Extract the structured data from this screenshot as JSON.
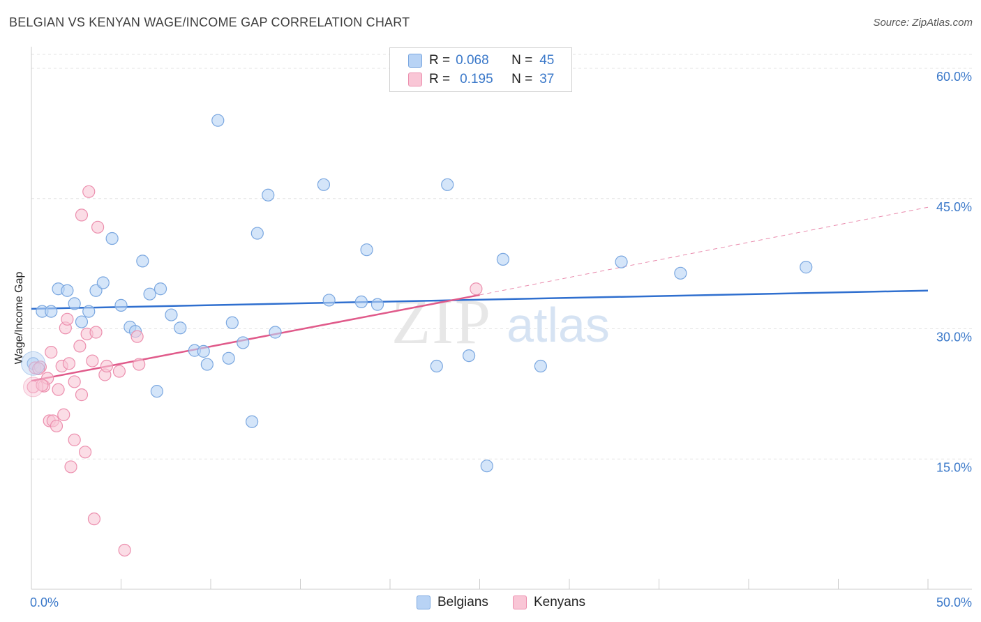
{
  "title": "BELGIAN VS KENYAN WAGE/INCOME GAP CORRELATION CHART",
  "source": "Source: ZipAtlas.com",
  "watermark": {
    "zip": "ZIP",
    "atlas": "atlas"
  },
  "legend": {
    "r_label": "R =",
    "n_label": "N =",
    "rows": [
      {
        "name": "Belgians",
        "r": "0.068",
        "n": "45",
        "fill": "#b8d3f5",
        "stroke": "#7aa7e0"
      },
      {
        "name": "Kenyans",
        "r": "0.195",
        "n": "37",
        "fill": "#f9c6d6",
        "stroke": "#ec8fae"
      }
    ]
  },
  "chart_data": {
    "type": "scatter",
    "title": "BELGIAN VS KENYAN WAGE/INCOME GAP CORRELATION CHART",
    "xlabel": "",
    "ylabel": "Wage/Income Gap",
    "xlim": [
      0,
      50
    ],
    "ylim": [
      0,
      60
    ],
    "x_tick_labels": [
      "0.0%",
      "50.0%"
    ],
    "y_tick_labels": [
      "15.0%",
      "30.0%",
      "45.0%",
      "60.0%"
    ],
    "y_ticks": [
      15,
      30,
      45,
      60
    ],
    "grid": true,
    "series": [
      {
        "name": "Belgians",
        "color": "#2f6fcf",
        "fill": "#b8d3f5",
        "stroke": "#7aa7e0",
        "r": 0.068,
        "n": 45,
        "trend": {
          "x": [
            0,
            50
          ],
          "y": [
            32.3,
            34.4
          ],
          "dashed_to": null
        },
        "points": [
          [
            0.1,
            26.0
          ],
          [
            0.6,
            32.0
          ],
          [
            1.1,
            32.0
          ],
          [
            1.5,
            34.6
          ],
          [
            2.0,
            34.4
          ],
          [
            2.4,
            32.9
          ],
          [
            2.8,
            30.8
          ],
          [
            3.2,
            32.0
          ],
          [
            3.6,
            34.4
          ],
          [
            4.0,
            35.3
          ],
          [
            4.5,
            40.4
          ],
          [
            5.0,
            32.7
          ],
          [
            5.5,
            30.2
          ],
          [
            5.8,
            29.7
          ],
          [
            6.2,
            37.8
          ],
          [
            6.6,
            34.0
          ],
          [
            7.0,
            22.8
          ],
          [
            7.2,
            34.6
          ],
          [
            7.8,
            31.6
          ],
          [
            8.3,
            30.1
          ],
          [
            9.1,
            27.5
          ],
          [
            9.6,
            27.4
          ],
          [
            9.8,
            25.9
          ],
          [
            10.4,
            54.0
          ],
          [
            11.0,
            26.6
          ],
          [
            11.2,
            30.7
          ],
          [
            11.8,
            28.4
          ],
          [
            12.3,
            19.3
          ],
          [
            12.6,
            41.0
          ],
          [
            13.2,
            45.4
          ],
          [
            13.6,
            29.6
          ],
          [
            16.3,
            46.6
          ],
          [
            16.6,
            33.3
          ],
          [
            18.4,
            33.1
          ],
          [
            18.7,
            39.1
          ],
          [
            19.3,
            32.8
          ],
          [
            22.6,
            25.7
          ],
          [
            23.2,
            46.6
          ],
          [
            24.4,
            26.9
          ],
          [
            25.4,
            14.2
          ],
          [
            26.3,
            38.0
          ],
          [
            28.4,
            25.7
          ],
          [
            32.9,
            37.7
          ],
          [
            36.2,
            36.4
          ],
          [
            43.2,
            37.1
          ]
        ]
      },
      {
        "name": "Kenyans",
        "color": "#e05a8a",
        "fill": "#f9c6d6",
        "stroke": "#ec8fae",
        "r": 0.195,
        "n": 37,
        "trend": {
          "x": [
            0,
            25
          ],
          "y": [
            24.0,
            33.9
          ],
          "dashed_to": {
            "x": 50,
            "y": 44.0
          }
        },
        "points": [
          [
            0.1,
            23.3
          ],
          [
            0.2,
            25.5
          ],
          [
            0.5,
            25.6
          ],
          [
            0.7,
            23.4
          ],
          [
            0.9,
            24.3
          ],
          [
            1.0,
            19.4
          ],
          [
            1.1,
            27.3
          ],
          [
            1.2,
            19.4
          ],
          [
            1.4,
            18.8
          ],
          [
            1.5,
            23.0
          ],
          [
            1.7,
            25.7
          ],
          [
            1.8,
            20.1
          ],
          [
            1.9,
            30.1
          ],
          [
            2.0,
            31.1
          ],
          [
            2.1,
            26.0
          ],
          [
            2.2,
            14.1
          ],
          [
            2.4,
            23.9
          ],
          [
            2.4,
            17.2
          ],
          [
            2.7,
            28.0
          ],
          [
            2.8,
            22.4
          ],
          [
            2.8,
            43.1
          ],
          [
            3.0,
            15.8
          ],
          [
            3.1,
            29.4
          ],
          [
            3.2,
            45.8
          ],
          [
            3.4,
            26.3
          ],
          [
            3.5,
            8.1
          ],
          [
            3.6,
            29.6
          ],
          [
            3.7,
            41.7
          ],
          [
            4.1,
            24.7
          ],
          [
            4.2,
            25.7
          ],
          [
            4.9,
            25.1
          ],
          [
            5.2,
            4.5
          ],
          [
            5.9,
            29.1
          ],
          [
            6.0,
            25.9
          ],
          [
            24.8,
            34.6
          ],
          [
            0.4,
            25.4
          ],
          [
            0.6,
            23.5
          ]
        ]
      }
    ]
  }
}
